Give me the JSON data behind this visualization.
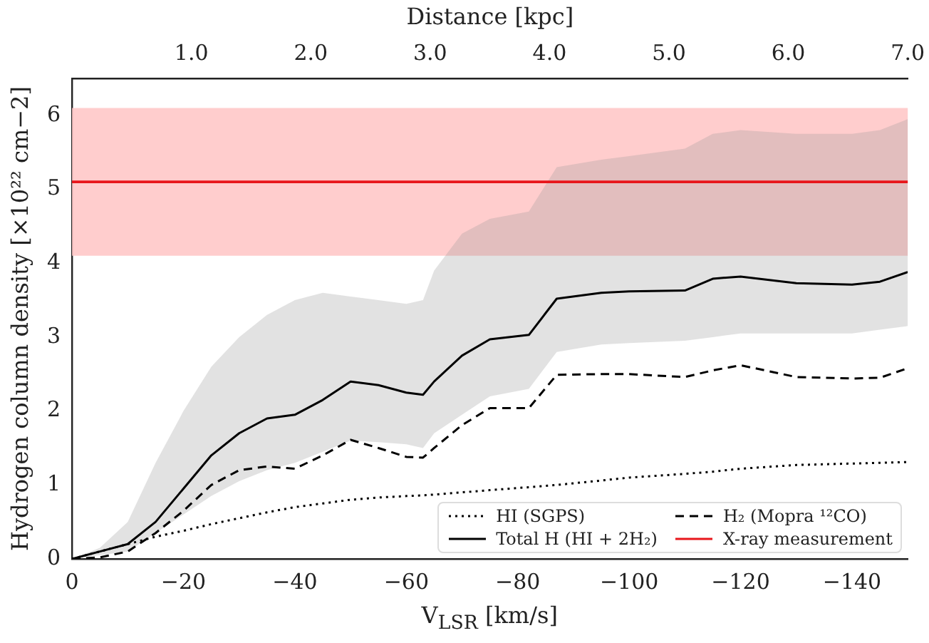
{
  "chart_data": {
    "type": "line",
    "xlabel": "V$_{LSR}$ [km/s]",
    "ylabel": "Hydrogen column density [×10²² cm−2]",
    "x2label": "Distance [kpc]",
    "x": [
      0,
      -5,
      -10,
      -15,
      -20,
      -25,
      -30,
      -35,
      -40,
      -45,
      -50,
      -55,
      -60,
      -63,
      -65,
      -70,
      -75,
      -82,
      -87,
      -95,
      -100,
      -110,
      -115,
      -120,
      -130,
      -140,
      -145,
      -150
    ],
    "series": [
      {
        "name": "HI (SGPS)",
        "color": "#000000",
        "line_style": "dotted",
        "values": [
          0,
          0.1,
          0.2,
          0.3,
          0.38,
          0.47,
          0.55,
          0.63,
          0.7,
          0.75,
          0.8,
          0.83,
          0.85,
          0.86,
          0.87,
          0.9,
          0.93,
          0.97,
          1.0,
          1.06,
          1.1,
          1.15,
          1.18,
          1.22,
          1.27,
          1.29,
          1.3,
          1.31
        ]
      },
      {
        "name": "H₂ (Mopra ¹²CO)",
        "color": "#000000",
        "line_style": "dashed",
        "values": [
          0,
          0.02,
          0.1,
          0.35,
          0.65,
          1.0,
          1.2,
          1.25,
          1.22,
          1.4,
          1.61,
          1.5,
          1.38,
          1.37,
          1.5,
          1.81,
          2.04,
          2.04,
          2.49,
          2.5,
          2.5,
          2.46,
          2.55,
          2.62,
          2.46,
          2.44,
          2.45,
          2.58
        ]
      },
      {
        "name": "Total H (HI + 2H₂)",
        "color": "#000000",
        "line_style": "solid",
        "values": [
          0,
          0.1,
          0.2,
          0.5,
          0.95,
          1.4,
          1.7,
          1.9,
          1.95,
          2.15,
          2.4,
          2.35,
          2.25,
          2.22,
          2.4,
          2.75,
          2.97,
          3.03,
          3.52,
          3.6,
          3.62,
          3.63,
          3.79,
          3.82,
          3.73,
          3.71,
          3.75,
          3.88
        ],
        "lower": [
          0,
          0.05,
          0.1,
          0.35,
          0.6,
          0.85,
          1.05,
          1.2,
          1.3,
          1.45,
          1.6,
          1.58,
          1.55,
          1.5,
          1.7,
          1.95,
          2.2,
          2.3,
          2.8,
          2.9,
          2.92,
          2.95,
          3.0,
          3.05,
          3.05,
          3.05,
          3.1,
          3.15
        ],
        "upper": [
          0,
          0.15,
          0.5,
          1.3,
          2.0,
          2.6,
          3.0,
          3.3,
          3.5,
          3.6,
          3.55,
          3.5,
          3.45,
          3.5,
          3.9,
          4.4,
          4.6,
          4.7,
          5.3,
          5.4,
          5.45,
          5.55,
          5.75,
          5.8,
          5.75,
          5.75,
          5.8,
          5.95
        ]
      }
    ],
    "ref_lines": [
      {
        "axis": "y",
        "value": 5.1,
        "label": "X-ray measurement",
        "color": "#e8161b"
      }
    ],
    "bands": [
      {
        "axis": "y",
        "from": 4.1,
        "to": 6.1,
        "color": "#ffc8c8"
      }
    ],
    "xlim": [
      0,
      -150
    ],
    "xticks": [
      0,
      -20,
      -40,
      -60,
      -80,
      -100,
      -120,
      -140
    ],
    "ylim": [
      0,
      6.5
    ],
    "yticks": [
      0,
      1,
      2,
      3,
      4,
      5,
      6
    ],
    "x2lim": [
      0,
      7
    ],
    "x2ticks": [
      {
        "value": 1,
        "label": "1.0"
      },
      {
        "value": 2,
        "label": "2.0"
      },
      {
        "value": 3,
        "label": "3.0"
      },
      {
        "value": 4,
        "label": "4.0"
      },
      {
        "value": 5,
        "label": "5.0"
      },
      {
        "value": 6,
        "label": "6.0"
      },
      {
        "value": 7,
        "label": "7.0"
      }
    ],
    "grid": false,
    "legend": "lower right",
    "marker": "none"
  }
}
